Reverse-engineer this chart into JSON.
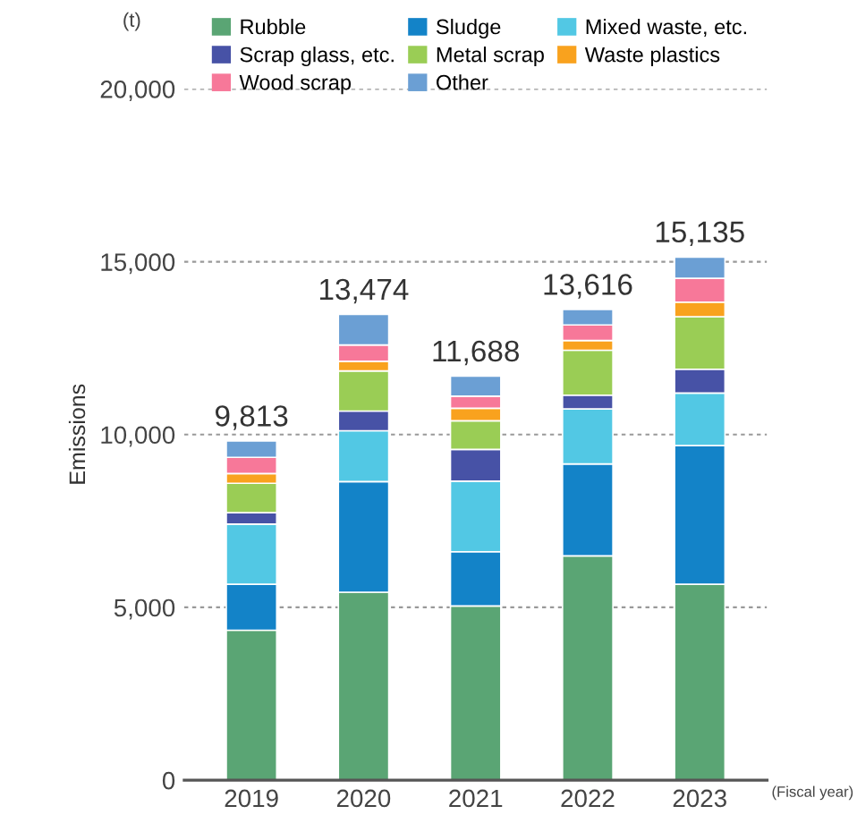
{
  "chart_data": {
    "type": "bar",
    "stacked": true,
    "ylabel": "Emissions",
    "categories": [
      "2019",
      "2020",
      "2021",
      "2022",
      "2023"
    ],
    "series": [
      {
        "name": "Rubble",
        "color": "#5aa574",
        "values": [
          4340,
          5440,
          5040,
          6490,
          5670
        ]
      },
      {
        "name": "Sludge",
        "color": "#1383c8",
        "values": [
          1330,
          3200,
          1570,
          2660,
          4010
        ]
      },
      {
        "name": "Mixed waste, etc.",
        "color": "#52c8e4",
        "values": [
          1740,
          1470,
          2040,
          1590,
          1520
        ]
      },
      {
        "name": "Scrap glass, etc.",
        "color": "#4752a6",
        "values": [
          330,
          570,
          920,
          400,
          690
        ]
      },
      {
        "name": "Metal scrap",
        "color": "#9acd55",
        "values": [
          850,
          1160,
          830,
          1300,
          1520
        ]
      },
      {
        "name": "Waste plastics",
        "color": "#f9a21e",
        "values": [
          280,
          280,
          360,
          280,
          420
        ]
      },
      {
        "name": "Wood scrap",
        "color": "#f77899",
        "values": [
          470,
          470,
          350,
          450,
          690
        ]
      },
      {
        "name": "Other",
        "color": "#6b9fd4",
        "values": [
          473,
          884,
          578,
          446,
          615
        ]
      }
    ],
    "totals": [
      "9,813",
      "13,474",
      "11,688",
      "13,616",
      "15,135"
    ],
    "ylim": [
      0,
      20000
    ],
    "yticks": [
      {
        "value": 0,
        "label": "0"
      },
      {
        "value": 5000,
        "label": "5,000"
      },
      {
        "value": 10000,
        "label": "10,000"
      },
      {
        "value": 15000,
        "label": "15,000"
      },
      {
        "value": 20000,
        "label": "20,000"
      }
    ],
    "grid": "y",
    "legend": "top right",
    "annotations": [
      "(t)",
      "(Fiscal year)"
    ]
  }
}
